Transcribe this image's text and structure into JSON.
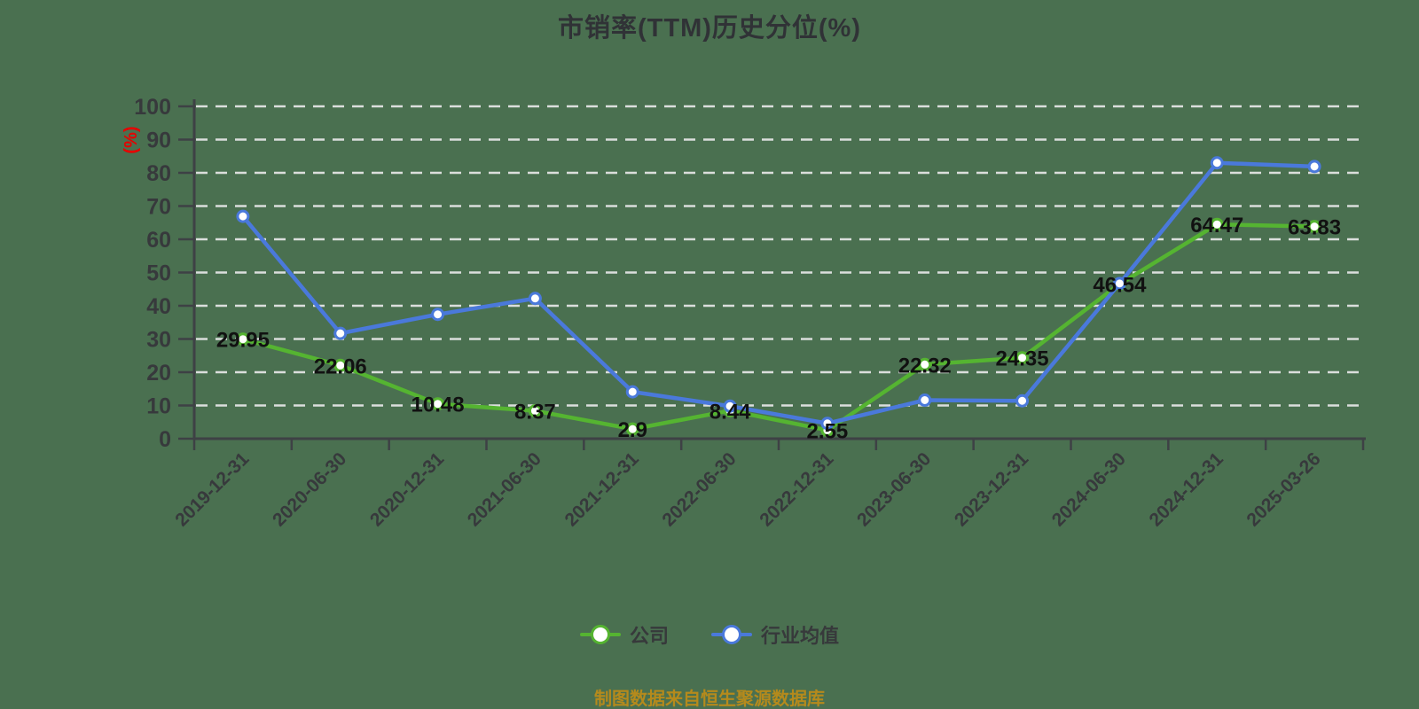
{
  "title": "市销率(TTM)历史分位(%)",
  "colors": {
    "background": "#4A7050",
    "axis": "#3E4145",
    "tick_label": "#37393C",
    "gridline": "#E8E8E8",
    "data_label": "#111111",
    "y_axis_name_color": "#E60000",
    "title_color": "#303236",
    "legend_text": "#37393B",
    "company_green": "#55B431",
    "industry_blue": "#4A79DB",
    "footer_text": "#B58A1C"
  },
  "legend": {
    "items": [
      {
        "label": "公司",
        "color": "#55B431"
      },
      {
        "label": "行业均值",
        "color": "#4A79DB"
      }
    ]
  },
  "footer": {
    "text": "制图数据来自恒生聚源数据库"
  },
  "chart_data": {
    "type": "line",
    "title": "市销率(TTM)历史分位(%)",
    "y_axis_name": "(%)",
    "xlabel": "",
    "ylabel": "(%)",
    "ylim": [
      0,
      100
    ],
    "ytick_interval": 10,
    "grid": "horizontal white dashed lines",
    "legend_position": "bottom",
    "categories": [
      "2019-12-31",
      "2020-06-30",
      "2020-12-31",
      "2021-06-30",
      "2021-12-31",
      "2022-06-30",
      "2022-12-31",
      "2023-06-30",
      "2023-12-31",
      "2024-06-30",
      "2024-12-31",
      "2025-03-26"
    ],
    "series": [
      {
        "name": "公司",
        "color": "#55B431",
        "marker": "white-filled-circle",
        "show_point_labels": true,
        "values": [
          29.95,
          22.06,
          10.48,
          8.37,
          2.9,
          8.44,
          2.55,
          22.32,
          24.35,
          46.54,
          64.47,
          63.83
        ]
      },
      {
        "name": "行业均值",
        "color": "#4A79DB",
        "marker": "white-filled-circle",
        "show_point_labels": false,
        "values_estimated_from_pixels": true,
        "values": [
          66.9,
          31.7,
          37.4,
          42.2,
          14.1,
          9.8,
          4.6,
          11.6,
          11.4,
          46.7,
          83.0,
          81.9
        ]
      }
    ]
  }
}
